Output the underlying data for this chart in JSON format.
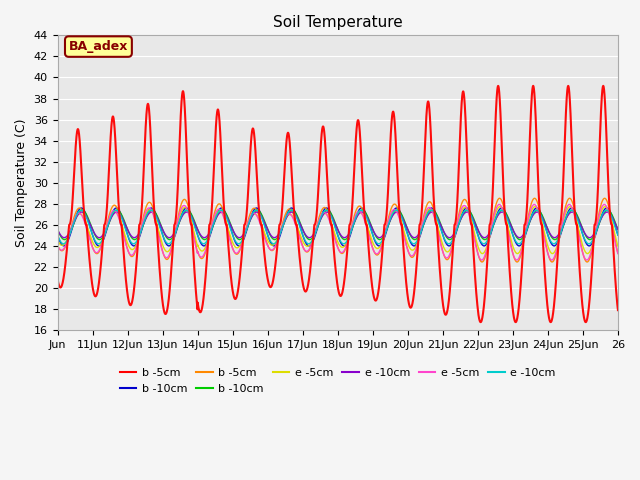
{
  "title": "Soil Temperature",
  "ylabel": "Soil Temperature (C)",
  "ylim": [
    16,
    44
  ],
  "yticks": [
    16,
    18,
    20,
    22,
    24,
    26,
    28,
    30,
    32,
    34,
    36,
    38,
    40,
    42,
    44
  ],
  "xlim_days": [
    10,
    26
  ],
  "xtick_labels": [
    "Jun",
    "11Jun",
    "12Jun",
    "13Jun",
    "14Jun",
    "15Jun",
    "16Jun",
    "17Jun",
    "18Jun",
    "19Jun",
    "20Jun",
    "21Jun",
    "22Jun",
    "23Jun",
    "24Jun",
    "25Jun",
    "26"
  ],
  "xtick_positions": [
    10,
    11,
    12,
    13,
    14,
    15,
    16,
    17,
    18,
    19,
    20,
    21,
    22,
    23,
    24,
    25,
    26
  ],
  "series_colors": [
    "#ff0000",
    "#0000cc",
    "#ff8800",
    "#00cc00",
    "#dddd00",
    "#8800cc",
    "#ff44cc",
    "#00cccc"
  ],
  "series_labels": [
    "b -5cm",
    "b -10cm",
    "b -5cm",
    "b -10cm",
    "e -5cm",
    "e -10cm",
    "e -5cm",
    "e -10cm"
  ],
  "annotation_text": "BA_adex",
  "annotation_bg": "#ffff99",
  "annotation_border": "#880000",
  "bg_color": "#e8e8e8",
  "grid_color": "#ffffff",
  "n_points": 5000
}
